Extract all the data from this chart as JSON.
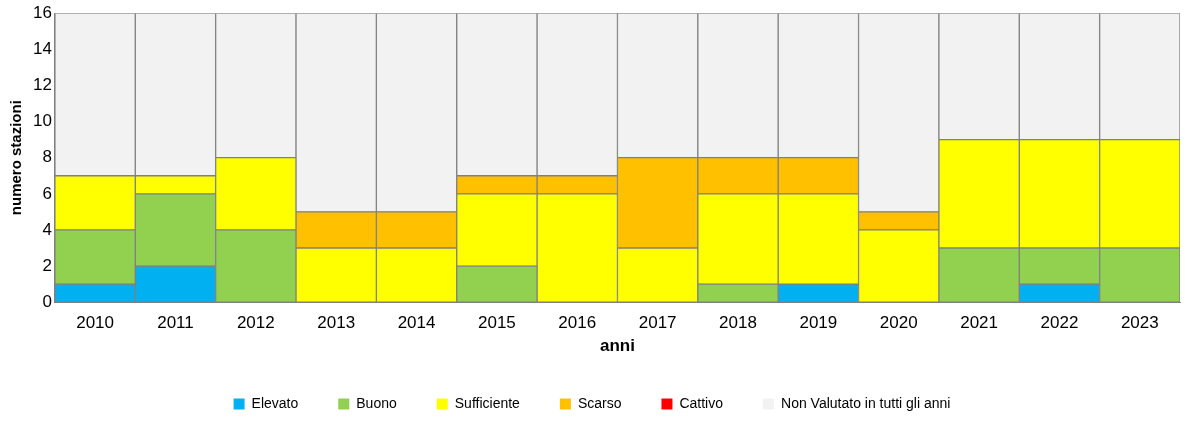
{
  "chart_data": {
    "type": "bar",
    "stacked": true,
    "xlabel": "anni",
    "ylabel": "numero stazioni",
    "categories": [
      "2010",
      "2011",
      "2012",
      "2013",
      "2014",
      "2015",
      "2016",
      "2017",
      "2018",
      "2019",
      "2020",
      "2021",
      "2022",
      "2023"
    ],
    "series": [
      {
        "name": "Elevato",
        "color": "#00b0f0",
        "values": [
          1,
          2,
          0,
          0,
          0,
          0,
          0,
          0,
          0,
          1,
          0,
          0,
          1,
          0
        ]
      },
      {
        "name": "Buono",
        "color": "#92d050",
        "values": [
          3,
          4,
          4,
          0,
          0,
          2,
          0,
          0,
          1,
          0,
          0,
          3,
          2,
          3
        ]
      },
      {
        "name": "Sufficiente",
        "color": "#ffff00",
        "values": [
          3,
          1,
          4,
          3,
          3,
          4,
          6,
          3,
          5,
          5,
          4,
          6,
          6,
          6
        ]
      },
      {
        "name": "Scarso",
        "color": "#ffc000",
        "values": [
          0,
          0,
          0,
          2,
          2,
          1,
          1,
          5,
          2,
          2,
          1,
          0,
          0,
          0
        ]
      },
      {
        "name": "Cattivo",
        "color": "#ff0000",
        "values": [
          0,
          0,
          0,
          0,
          0,
          0,
          0,
          0,
          0,
          0,
          0,
          0,
          0,
          0
        ]
      },
      {
        "name": "Non Valutato in tutti gli anni",
        "color": "#f2f2f2",
        "values": [
          9,
          9,
          8,
          11,
          11,
          9,
          9,
          8,
          8,
          8,
          11,
          7,
          7,
          7
        ]
      }
    ],
    "ylim": [
      0,
      16
    ],
    "yticks": [
      0,
      2,
      4,
      6,
      8,
      10,
      12,
      14,
      16
    ],
    "grid": false,
    "legend": "bottom"
  }
}
